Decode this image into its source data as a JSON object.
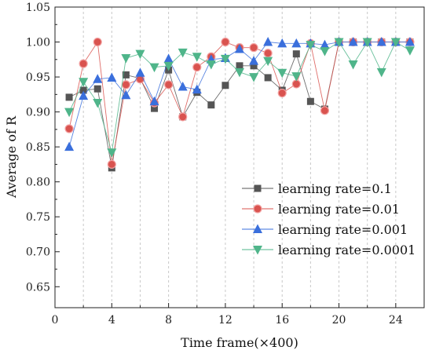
{
  "chart_data": {
    "type": "line",
    "xlabel": "Time frame(×400)",
    "ylabel": "Average of R",
    "xlim": [
      0,
      26
    ],
    "ylim": [
      0.62,
      1.05
    ],
    "xticks": [
      0,
      4,
      8,
      12,
      16,
      20,
      24
    ],
    "xtick_labels": [
      "0",
      "4",
      "8",
      "12",
      "16",
      "20",
      "24"
    ],
    "yticks": [
      0.65,
      0.7,
      0.75,
      0.8,
      0.85,
      0.9,
      0.95,
      1.0,
      1.05
    ],
    "ytick_labels": [
      "0.65",
      "0.70",
      "0.75",
      "0.80",
      "0.85",
      "0.90",
      "0.95",
      "1.00",
      "1.05"
    ],
    "grid": "vertical dashed",
    "legend_position": "bottom-right",
    "x": [
      1,
      2,
      3,
      4,
      5,
      6,
      7,
      8,
      9,
      10,
      11,
      12,
      13,
      14,
      15,
      16,
      17,
      18,
      19,
      20,
      21,
      22,
      23,
      24,
      25
    ],
    "series": [
      {
        "name": "learning rate=0.1",
        "color": "#555555",
        "marker": "square",
        "values": [
          0.921,
          0.931,
          0.933,
          0.82,
          0.953,
          0.948,
          0.905,
          0.96,
          0.893,
          0.928,
          0.91,
          0.938,
          0.966,
          0.966,
          0.949,
          0.931,
          0.983,
          0.915,
          0.904,
          1.0,
          1.0,
          1.0,
          1.0,
          1.0,
          1.0
        ]
      },
      {
        "name": "learning rate=0.01",
        "color": "#d9534f",
        "marker": "circle",
        "values": [
          0.876,
          0.969,
          1.0,
          0.825,
          0.939,
          0.947,
          0.913,
          0.939,
          0.893,
          0.964,
          0.979,
          1.0,
          0.992,
          0.992,
          0.984,
          0.927,
          0.94,
          0.998,
          0.902,
          1.0,
          1.0,
          1.0,
          1.0,
          1.0,
          1.0
        ]
      },
      {
        "name": "learning rate=0.001",
        "color": "#3a6fdc",
        "marker": "triangle-up",
        "values": [
          0.85,
          0.923,
          0.947,
          0.949,
          0.924,
          0.956,
          0.915,
          0.976,
          0.936,
          0.932,
          0.975,
          0.977,
          0.99,
          0.973,
          1.0,
          0.998,
          0.998,
          0.998,
          0.996,
          1.0,
          1.0,
          1.0,
          1.0,
          1.0,
          1.0
        ]
      },
      {
        "name": "learning rate=0.0001",
        "color": "#4fb58a",
        "marker": "triangle-down",
        "values": [
          0.9,
          0.943,
          0.913,
          0.842,
          0.977,
          0.983,
          0.964,
          0.966,
          0.985,
          0.979,
          0.968,
          0.976,
          0.957,
          0.95,
          0.973,
          0.956,
          0.951,
          0.996,
          0.987,
          1.0,
          0.968,
          1.0,
          0.957,
          1.0,
          0.988
        ]
      }
    ]
  }
}
